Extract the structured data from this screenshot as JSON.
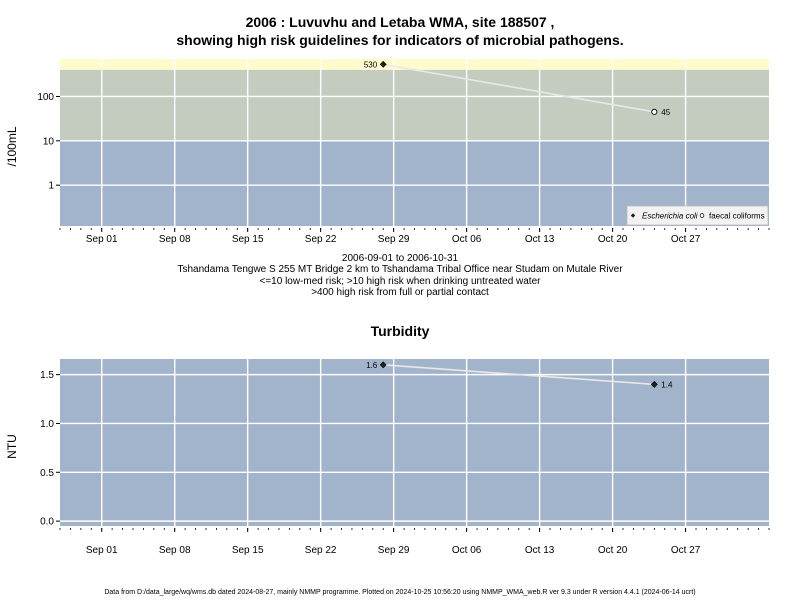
{
  "title_line1": "2006 : Luvuvhu and Letaba WMA, site 188507 ,",
  "title_line2": "showing high risk guidelines for indicators of microbial pathogens.",
  "subtitle_lines": [
    "2006-09-01 to 2006-10-31",
    "Tshandama Tengwe S 255 MT Bridge 2 km to Tshandama Tribal Office near Studam on Mutale River",
    "<=10 low-med risk; >10 high risk when drinking untreated water",
    ">400 high risk from full or partial contact"
  ],
  "turbidity_title": "Turbidity",
  "footer": "Data from D:/data_large/wq/wms.db dated 2024-08-27, mainly NMMP programme. Plotted on 2024-10-25 10:56:20 using NMMP_WMA_web.R ver 9.3 under R version 4.4.1 (2024-06-14 ucrt)",
  "colors": {
    "band_low": "#a2b4cc",
    "band_mid": "#c4ccc0",
    "band_high": "#fffbcc",
    "line": "#e8e8e8",
    "grid": "#ffffff"
  },
  "chart_data": [
    {
      "type": "line",
      "title": "2006 : Luvuvhu and Letaba WMA, site 188507 , showing high risk guidelines for indicators of microbial pathogens.",
      "ylabel": "/100mL",
      "yscale": "log",
      "ylim": [
        0.12,
        700
      ],
      "xlim": [
        "2006-08-28",
        "2006-11-04"
      ],
      "x_ticks": [
        "Sep 01",
        "Sep 08",
        "Sep 15",
        "Sep 22",
        "Sep 29",
        "Oct 06",
        "Oct 13",
        "Oct 20",
        "Oct 27"
      ],
      "x_tick_dates": [
        "2006-09-01",
        "2006-09-08",
        "2006-09-15",
        "2006-09-22",
        "2006-09-29",
        "2006-10-06",
        "2006-10-13",
        "2006-10-20",
        "2006-10-27"
      ],
      "y_ticks": [
        1,
        10,
        100
      ],
      "y_tick_labels": [
        "1",
        "10",
        "100"
      ],
      "bands": [
        {
          "from": 0.12,
          "to": 10,
          "color": "#a2b4cc"
        },
        {
          "from": 10,
          "to": 400,
          "color": "#c4ccc0"
        },
        {
          "from": 400,
          "to": 700,
          "color": "#fffbcc"
        }
      ],
      "series": [
        {
          "name": "Escherichia coli",
          "marker": "filled-diamond",
          "x": [
            "2006-09-28"
          ],
          "y": [
            530
          ],
          "labels": [
            "530"
          ]
        },
        {
          "name": "faecal coliforms",
          "marker": "open-circle",
          "x": [
            "2006-10-24"
          ],
          "y": [
            45
          ],
          "labels": [
            "45"
          ]
        }
      ],
      "connector": {
        "x": [
          "2006-09-28",
          "2006-10-24"
        ],
        "y": [
          530,
          45
        ]
      },
      "legend_position": "bottom-right",
      "grid": true
    },
    {
      "type": "line",
      "title": "Turbidity",
      "ylabel": "NTU",
      "ylim": [
        -0.05,
        1.66
      ],
      "xlim": [
        "2006-08-28",
        "2006-11-04"
      ],
      "x_ticks": [
        "Sep 01",
        "Sep 08",
        "Sep 15",
        "Sep 22",
        "Sep 29",
        "Oct 06",
        "Oct 13",
        "Oct 20",
        "Oct 27"
      ],
      "x_tick_dates": [
        "2006-09-01",
        "2006-09-08",
        "2006-09-15",
        "2006-09-22",
        "2006-09-29",
        "2006-10-06",
        "2006-10-13",
        "2006-10-20",
        "2006-10-27"
      ],
      "y_ticks": [
        0,
        0.5,
        1.0,
        1.5
      ],
      "y_tick_labels": [
        "0.0",
        "0.5",
        "1.0",
        "1.5"
      ],
      "series": [
        {
          "name": "",
          "marker": "filled-diamond",
          "x": [
            "2006-09-28",
            "2006-10-24"
          ],
          "y": [
            1.6,
            1.4
          ],
          "labels": [
            "1.6",
            "1.4"
          ]
        }
      ],
      "grid": true
    }
  ]
}
